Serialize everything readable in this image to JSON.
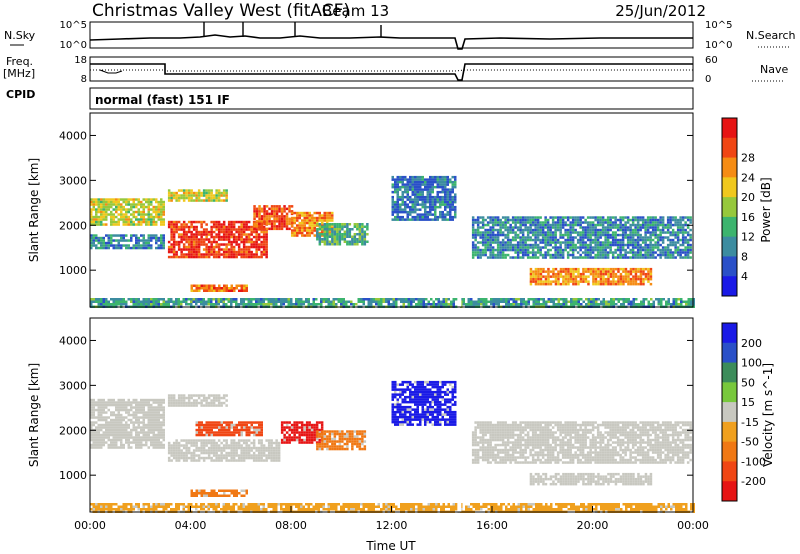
{
  "header": {
    "station": "Christmas Valley West (fitACF)",
    "beam": "Beam 13",
    "date": "25/Jun/2012"
  },
  "noise_panel": {
    "left_label": "N.Sky",
    "left_ticks": [
      "10^5",
      "10^0"
    ],
    "right_ticks": [
      "10^5",
      "10^0"
    ],
    "right_label": "N.Search"
  },
  "freq_panel": {
    "left_label_1": "Freq.",
    "left_label_2": "[MHz]",
    "left_ticks": [
      "18",
      "8"
    ],
    "right_ticks": [
      "60",
      "0"
    ],
    "right_label": "Nave"
  },
  "cpid_panel": {
    "label": "CPID",
    "text": "normal (fast) 151 IF"
  },
  "colors": {
    "ground_scatter": "#c8c8c0",
    "power_scale": [
      "#1a1ae6",
      "#2a50c8",
      "#3c8ca0",
      "#3cb46e",
      "#96c83c",
      "#f0c81e",
      "#f58c14",
      "#f04614",
      "#e61414"
    ],
    "velocity_scale": [
      "#1a1ae6",
      "#2a50c8",
      "#3c8c5a",
      "#78c83c",
      "#c8c8c0",
      "#f0a01e",
      "#f07814",
      "#f04614",
      "#e61414"
    ]
  },
  "chart_data": [
    {
      "type": "heatmap",
      "name": "power",
      "xlabel": "",
      "ylabel": "Slant Range [km]",
      "xlim": [
        0,
        24
      ],
      "ylim": [
        180,
        4500
      ],
      "y_ticks": [
        "1000",
        "2000",
        "3000",
        "4000"
      ],
      "colorbar": {
        "label": "Power [dB]",
        "ticks": [
          "4",
          "8",
          "12",
          "16",
          "20",
          "24",
          "28"
        ]
      },
      "echo_regions": [
        {
          "t_start": 0.0,
          "t_end": 2.9,
          "r_low": 2000,
          "r_high": 2600,
          "level": 16
        },
        {
          "t_start": 0.0,
          "t_end": 2.9,
          "r_low": 1500,
          "r_high": 1800,
          "level": 6
        },
        {
          "t_start": 3.1,
          "t_end": 5.4,
          "r_low": 2550,
          "r_high": 2800,
          "level": 16
        },
        {
          "t_start": 3.1,
          "t_end": 7.0,
          "r_low": 1300,
          "r_high": 2100,
          "level": 28
        },
        {
          "t_start": 6.5,
          "t_end": 8.0,
          "r_low": 1900,
          "r_high": 2450,
          "level": 26
        },
        {
          "t_start": 8.0,
          "t_end": 9.6,
          "r_low": 1750,
          "r_high": 2300,
          "level": 22
        },
        {
          "t_start": 9.0,
          "t_end": 11.0,
          "r_low": 1600,
          "r_high": 2050,
          "level": 10
        },
        {
          "t_start": 4.0,
          "t_end": 6.2,
          "r_low": 520,
          "r_high": 680,
          "level": 24
        },
        {
          "t_start": 12.0,
          "t_end": 14.5,
          "r_low": 2100,
          "r_high": 3100,
          "level": 4
        },
        {
          "t_start": 15.2,
          "t_end": 23.9,
          "r_low": 1300,
          "r_high": 2200,
          "level": 6
        },
        {
          "t_start": 17.5,
          "t_end": 22.3,
          "r_low": 700,
          "r_high": 1050,
          "level": 22
        },
        {
          "t_start": 0.0,
          "t_end": 24.0,
          "r_low": 200,
          "r_high": 380,
          "level": 8
        }
      ]
    },
    {
      "type": "heatmap",
      "name": "velocity",
      "xlabel": "Time UT",
      "ylabel": "Slant Range [km]",
      "xlim": [
        0,
        24
      ],
      "ylim": [
        180,
        4500
      ],
      "x_ticks": [
        "00:00",
        "04:00",
        "08:00",
        "12:00",
        "16:00",
        "20:00",
        "00:00"
      ],
      "y_ticks": [
        "1000",
        "2000",
        "3000",
        "4000"
      ],
      "colorbar": {
        "label": "Velocity [m s^-1]",
        "ticks": [
          "200",
          "100",
          "50",
          "15",
          "-15",
          "-50",
          "-100",
          "-200"
        ]
      },
      "echo_regions": [
        {
          "t_start": 0.0,
          "t_end": 2.9,
          "r_low": 1600,
          "r_high": 2700,
          "level": 0
        },
        {
          "t_start": 3.1,
          "t_end": 7.5,
          "r_low": 1300,
          "r_high": 1800,
          "level": 0
        },
        {
          "t_start": 3.1,
          "t_end": 5.4,
          "r_low": 2550,
          "r_high": 2800,
          "level": 0
        },
        {
          "t_start": 4.2,
          "t_end": 6.8,
          "r_low": 1900,
          "r_high": 2200,
          "level": -180
        },
        {
          "t_start": 7.6,
          "t_end": 9.2,
          "r_low": 1700,
          "r_high": 2200,
          "level": -220
        },
        {
          "t_start": 9.0,
          "t_end": 10.9,
          "r_low": 1600,
          "r_high": 2000,
          "level": -80
        },
        {
          "t_start": 4.0,
          "t_end": 6.2,
          "r_low": 520,
          "r_high": 680,
          "level": -60
        },
        {
          "t_start": 12.0,
          "t_end": 14.5,
          "r_low": 2100,
          "r_high": 3100,
          "level": 200
        },
        {
          "t_start": 15.2,
          "t_end": 23.9,
          "r_low": 1300,
          "r_high": 2200,
          "level": 0
        },
        {
          "t_start": 17.5,
          "t_end": 22.3,
          "r_low": 800,
          "r_high": 1050,
          "level": 0
        },
        {
          "t_start": 0.0,
          "t_end": 24.0,
          "r_low": 200,
          "r_high": 380,
          "level": -40
        }
      ]
    }
  ]
}
